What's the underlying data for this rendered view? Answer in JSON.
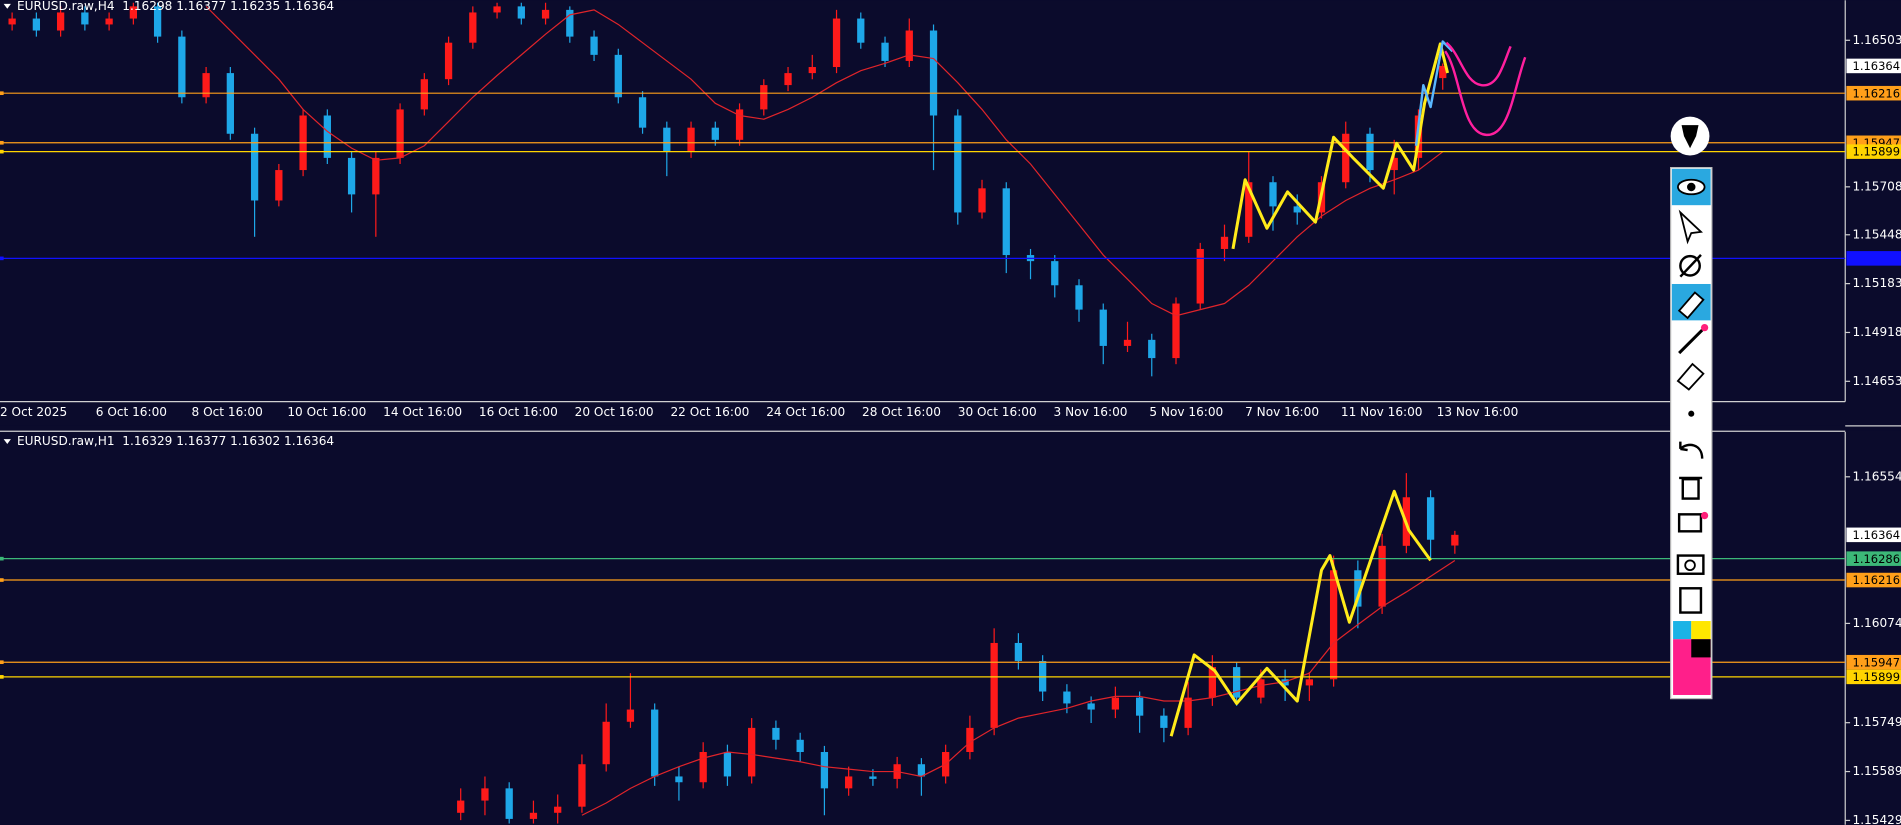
{
  "panels": [
    {
      "type": "candlestick",
      "header": "EURUSD.raw,H4  1.16298 1.16377 1.16235 1.16364",
      "time_labels": [
        "2 Oct 2025",
        "6 Oct 16:00",
        "8 Oct 16:00",
        "10 Oct 16:00",
        "14 Oct 16:00",
        "16 Oct 16:00",
        "20 Oct 16:00",
        "22 Oct 16:00",
        "24 Oct 16:00",
        "28 Oct 16:00",
        "30 Oct 16:00",
        "3 Nov 16:00",
        "5 Nov 16:00",
        "7 Nov 16:00",
        "11 Nov 16:00",
        "13 Nov 16:00"
      ],
      "ylim": [
        1.14543,
        1.1672
      ],
      "yticks": [
        1.16503,
        1.15708,
        1.15448,
        1.15183,
        1.14918,
        1.14653
      ],
      "bull_color": "#ff1a1a",
      "bear_color": "#1ea7e8",
      "candles": [
        [
          1.16589,
          1.16654,
          1.16556,
          1.16621
        ],
        [
          1.16621,
          1.16654,
          1.16523,
          1.16556
        ],
        [
          1.16556,
          1.16687,
          1.16523,
          1.16654
        ],
        [
          1.16654,
          1.16687,
          1.16556,
          1.16589
        ],
        [
          1.16589,
          1.16654,
          1.16556,
          1.16621
        ],
        [
          1.16621,
          1.16707,
          1.16589,
          1.16687
        ],
        [
          1.16687,
          1.16707,
          1.1649,
          1.16523
        ],
        [
          1.16523,
          1.16556,
          1.16161,
          1.16194
        ],
        [
          1.16194,
          1.16358,
          1.16161,
          1.16325
        ],
        [
          1.16325,
          1.16358,
          1.15963,
          1.15996
        ],
        [
          1.15996,
          1.16029,
          1.15437,
          1.15634
        ],
        [
          1.15634,
          1.15832,
          1.15602,
          1.15799
        ],
        [
          1.15799,
          1.16128,
          1.15766,
          1.16095
        ],
        [
          1.16095,
          1.16128,
          1.15832,
          1.15865
        ],
        [
          1.15865,
          1.15898,
          1.15569,
          1.15667
        ],
        [
          1.15667,
          1.15898,
          1.15437,
          1.15865
        ],
        [
          1.15865,
          1.16161,
          1.15832,
          1.16128
        ],
        [
          1.16128,
          1.16325,
          1.16095,
          1.16292
        ],
        [
          1.16292,
          1.16523,
          1.1626,
          1.1649
        ],
        [
          1.1649,
          1.16687,
          1.16457,
          1.16654
        ],
        [
          1.16654,
          1.16707,
          1.16621,
          1.16687
        ],
        [
          1.16687,
          1.16707,
          1.16589,
          1.16621
        ],
        [
          1.16621,
          1.16707,
          1.16589,
          1.16668
        ],
        [
          1.16668,
          1.16687,
          1.1649,
          1.16523
        ],
        [
          1.16523,
          1.16556,
          1.16391,
          1.16424
        ],
        [
          1.16424,
          1.16457,
          1.16161,
          1.16194
        ],
        [
          1.16194,
          1.16227,
          1.15996,
          1.16029
        ],
        [
          1.16029,
          1.16062,
          1.15766,
          1.15898
        ],
        [
          1.15898,
          1.16062,
          1.15865,
          1.16029
        ],
        [
          1.16029,
          1.16062,
          1.15931,
          1.15963
        ],
        [
          1.15963,
          1.16161,
          1.15931,
          1.16128
        ],
        [
          1.16128,
          1.16292,
          1.16095,
          1.1626
        ],
        [
          1.1626,
          1.16358,
          1.16227,
          1.16325
        ],
        [
          1.16325,
          1.16424,
          1.16292,
          1.16358
        ],
        [
          1.16358,
          1.16668,
          1.16325,
          1.16621
        ],
        [
          1.16621,
          1.16654,
          1.16457,
          1.1649
        ],
        [
          1.1649,
          1.16523,
          1.16358,
          1.16391
        ],
        [
          1.16391,
          1.16621,
          1.16358,
          1.16556
        ],
        [
          1.16556,
          1.16589,
          1.15799,
          1.16095
        ],
        [
          1.16095,
          1.16128,
          1.15503,
          1.15569
        ],
        [
          1.15569,
          1.15746,
          1.15536,
          1.157
        ],
        [
          1.157,
          1.15733,
          1.1524,
          1.15338
        ],
        [
          1.15338,
          1.15371,
          1.15207,
          1.15305
        ],
        [
          1.15305,
          1.15338,
          1.15108,
          1.15174
        ],
        [
          1.15174,
          1.15207,
          1.14976,
          1.15042
        ],
        [
          1.15042,
          1.15075,
          1.14746,
          1.14845
        ],
        [
          1.14845,
          1.14976,
          1.14812,
          1.14878
        ],
        [
          1.14878,
          1.14911,
          1.1468,
          1.14779
        ],
        [
          1.14779,
          1.15108,
          1.14746,
          1.15075
        ],
        [
          1.15075,
          1.15404,
          1.15042,
          1.15371
        ],
        [
          1.15371,
          1.15503,
          1.15305,
          1.15437
        ],
        [
          1.15437,
          1.15898,
          1.15404,
          1.15733
        ],
        [
          1.15733,
          1.15766,
          1.1547,
          1.15602
        ],
        [
          1.15602,
          1.15667,
          1.15503,
          1.15569
        ],
        [
          1.15569,
          1.15766,
          1.15536,
          1.15733
        ],
        [
          1.15733,
          1.16062,
          1.157,
          1.15996
        ],
        [
          1.15996,
          1.16029,
          1.15733,
          1.15799
        ],
        [
          1.15799,
          1.15963,
          1.15667,
          1.15865
        ],
        [
          1.15865,
          1.16128,
          1.15799,
          1.16095
        ],
        [
          1.16298,
          1.16377,
          1.16235,
          1.16364
        ]
      ],
      "ma": {
        "color": "#e0242a",
        "values": [
          null,
          null,
          null,
          null,
          null,
          null,
          null,
          null,
          1.16687,
          1.16556,
          1.16424,
          1.16292,
          1.16128,
          1.16009,
          1.15918,
          1.15852,
          1.15865,
          1.15931,
          1.16062,
          1.16194,
          1.16312,
          1.16424,
          1.16536,
          1.16641,
          1.16668,
          1.16589,
          1.1649,
          1.16391,
          1.16292,
          1.16161,
          1.16095,
          1.16075,
          1.16128,
          1.16194,
          1.16273,
          1.16338,
          1.16378,
          1.16424,
          1.16404,
          1.16273,
          1.16128,
          1.15963,
          1.15832,
          1.15667,
          1.15503,
          1.15338,
          1.15207,
          1.15075,
          1.15009,
          1.15042,
          1.15075,
          1.15174,
          1.15305,
          1.15437,
          1.15549,
          1.15634,
          1.157,
          1.15746,
          1.15799,
          1.15898
        ]
      },
      "levels": [
        {
          "value": 1.16364,
          "color": "#ffffff",
          "line": false,
          "labeled": true
        },
        {
          "value": 1.16216,
          "color": "#ff9f1a",
          "line": true,
          "labeled": true
        },
        {
          "value": 1.15947,
          "color": "#ff9f1a",
          "line": true,
          "labeled": true
        },
        {
          "value": 1.15899,
          "color": "#ffd400",
          "line": true,
          "labeled": true
        },
        {
          "value": 1.1532,
          "color": "#1010ff",
          "line": true,
          "labeled": false
        }
      ]
    },
    {
      "type": "candlestick",
      "header": "EURUSD.raw,H1  1.16329 1.16377 1.16302 1.16364",
      "ylim": [
        1.15415,
        1.16701
      ],
      "yticks": [
        1.16554,
        1.16074,
        1.15749,
        1.15589,
        1.15429
      ],
      "bull_color": "#ff1a1a",
      "bear_color": "#1ea7e8",
      "candles": [
        [
          1.15454,
          1.15534,
          1.1543,
          1.15494
        ],
        [
          1.15494,
          1.15573,
          1.15446,
          1.15534
        ],
        [
          1.15534,
          1.15554,
          1.15419,
          1.15434
        ],
        [
          1.15434,
          1.15494,
          1.15419,
          1.15454
        ],
        [
          1.15454,
          1.15514,
          1.15419,
          1.15474
        ],
        [
          1.15474,
          1.15645,
          1.15454,
          1.15613
        ],
        [
          1.15613,
          1.15812,
          1.15589,
          1.15752
        ],
        [
          1.15752,
          1.15911,
          1.15732,
          1.15792
        ],
        [
          1.15792,
          1.15812,
          1.15542,
          1.15573
        ],
        [
          1.15573,
          1.15605,
          1.15494,
          1.15554
        ],
        [
          1.15554,
          1.15685,
          1.15534,
          1.15653
        ],
        [
          1.15653,
          1.15677,
          1.15542,
          1.15573
        ],
        [
          1.15573,
          1.15764,
          1.1555,
          1.15732
        ],
        [
          1.15732,
          1.15756,
          1.15661,
          1.15693
        ],
        [
          1.15693,
          1.15716,
          1.15621,
          1.15653
        ],
        [
          1.15653,
          1.15673,
          1.15446,
          1.15534
        ],
        [
          1.15534,
          1.15605,
          1.1551,
          1.15573
        ],
        [
          1.15573,
          1.15597,
          1.15542,
          1.15565
        ],
        [
          1.15565,
          1.15637,
          1.15534,
          1.15613
        ],
        [
          1.15613,
          1.15633,
          1.1551,
          1.15573
        ],
        [
          1.15573,
          1.15677,
          1.1555,
          1.15653
        ],
        [
          1.15653,
          1.15772,
          1.15629,
          1.15732
        ],
        [
          1.15732,
          1.16058,
          1.15708,
          1.1601
        ],
        [
          1.1601,
          1.16042,
          1.15923,
          1.15951
        ],
        [
          1.15951,
          1.1597,
          1.1582,
          1.15851
        ],
        [
          1.15851,
          1.15875,
          1.1578,
          1.15812
        ],
        [
          1.15812,
          1.15835,
          1.15748,
          1.15792
        ],
        [
          1.15792,
          1.15867,
          1.15764,
          1.15831
        ],
        [
          1.15831,
          1.15851,
          1.15716,
          1.15772
        ],
        [
          1.15772,
          1.15796,
          1.15685,
          1.15732
        ],
        [
          1.15732,
          1.15883,
          1.15708,
          1.15831
        ],
        [
          1.15831,
          1.1597,
          1.15804,
          1.15931
        ],
        [
          1.15931,
          1.15947,
          1.15804,
          1.15831
        ],
        [
          1.15831,
          1.15923,
          1.15812,
          1.15891
        ],
        [
          1.15891,
          1.15923,
          1.1582,
          1.15871
        ],
        [
          1.15871,
          1.15915,
          1.1582,
          1.15891
        ],
        [
          1.15891,
          1.16296,
          1.15867,
          1.16248
        ],
        [
          1.16248,
          1.1628,
          1.16058,
          1.16129
        ],
        [
          1.16129,
          1.16367,
          1.16105,
          1.16328
        ],
        [
          1.16328,
          1.16566,
          1.16304,
          1.16487
        ],
        [
          1.16487,
          1.1651,
          1.16288,
          1.16348
        ],
        [
          1.16329,
          1.16377,
          1.16302,
          1.16364
        ]
      ],
      "ma": {
        "color": "#e0242a",
        "values": [
          null,
          null,
          null,
          null,
          null,
          1.15446,
          1.15486,
          1.15534,
          1.15573,
          1.15605,
          1.15633,
          1.15653,
          1.15645,
          1.15633,
          1.15621,
          1.15605,
          1.15597,
          1.15589,
          1.15589,
          1.15573,
          1.15613,
          1.15685,
          1.15732,
          1.15764,
          1.1578,
          1.15796,
          1.1582,
          1.15835,
          1.15835,
          1.1582,
          1.1582,
          1.15831,
          1.15851,
          1.15871,
          1.15883,
          1.15911,
          1.1601,
          1.1607,
          1.16129,
          1.16177,
          1.16228,
          1.1628
        ]
      },
      "levels": [
        {
          "value": 1.16364,
          "color": "#ffffff",
          "line": false,
          "labeled": true
        },
        {
          "value": 1.16286,
          "color": "#3cb878",
          "line": true,
          "labeled": true
        },
        {
          "value": 1.16216,
          "color": "#ff9f1a",
          "line": true,
          "labeled": true
        },
        {
          "value": 1.15947,
          "color": "#ff9f1a",
          "line": true,
          "labeled": true
        },
        {
          "value": 1.15899,
          "color": "#ffd400",
          "line": true,
          "labeled": true
        }
      ]
    }
  ]
}
